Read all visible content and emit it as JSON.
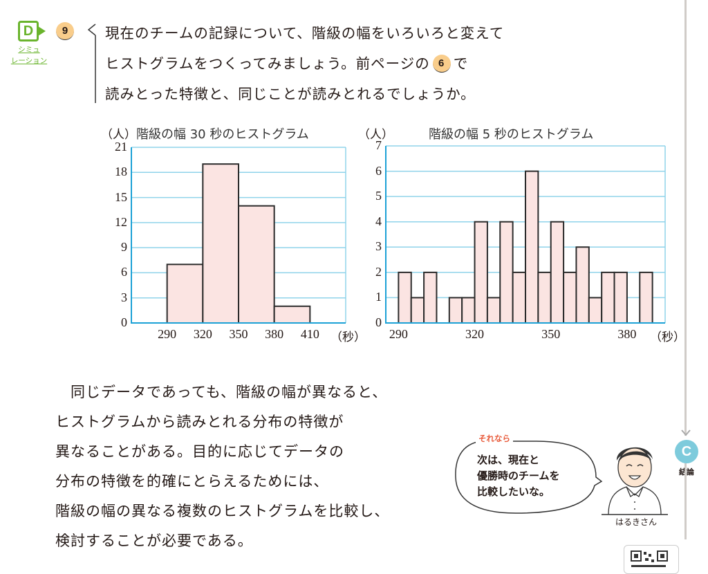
{
  "badge": {
    "letter": "D",
    "label_line1": "シミュ",
    "label_line2": "レーション",
    "color": "#6ab42d"
  },
  "question": {
    "number": "9",
    "lines": [
      "現在のチームの記録について、階級の幅をいろいろと変えて",
      "ヒストグラムをつくってみましょう。前ページの",
      "で",
      "読みとった特徴と、同じことが読みとれるでしょうか。"
    ],
    "ref_number": "6"
  },
  "chart_data": [
    {
      "type": "bar",
      "title": "階級の幅 30 秒のヒストグラム",
      "ylabel": "（人）",
      "xlabel": "（秒）",
      "bin_edges": [
        290,
        320,
        350,
        380,
        410
      ],
      "categories": [
        "290-320",
        "320-350",
        "350-380",
        "380-410"
      ],
      "values": [
        7,
        19,
        14,
        2
      ],
      "x_ticks": [
        "290",
        "320",
        "350",
        "380",
        "410"
      ],
      "y_ticks": [
        "0",
        "3",
        "6",
        "9",
        "12",
        "15",
        "18",
        "21"
      ],
      "ylim": [
        0,
        21
      ],
      "x_range": [
        260,
        440
      ],
      "grid": true,
      "bar_color": "#fbe4e2",
      "grid_color": "#5bc0de"
    },
    {
      "type": "bar",
      "title": "階級の幅 5 秒のヒストグラム",
      "ylabel": "（人）",
      "xlabel": "（秒）",
      "bin_edges": [
        290,
        295,
        300,
        305,
        310,
        315,
        320,
        325,
        330,
        335,
        340,
        345,
        350,
        355,
        360,
        365,
        370,
        375,
        380,
        385,
        390
      ],
      "categories": [
        "290-295",
        "295-300",
        "300-305",
        "305-310",
        "310-315",
        "315-320",
        "320-325",
        "325-330",
        "330-335",
        "335-340",
        "340-345",
        "345-350",
        "350-355",
        "355-360",
        "360-365",
        "365-370",
        "370-375",
        "375-380",
        "380-385",
        "385-390"
      ],
      "values": [
        2,
        1,
        2,
        0,
        1,
        1,
        4,
        1,
        4,
        2,
        6,
        2,
        4,
        2,
        3,
        1,
        2,
        2,
        0,
        2
      ],
      "x_ticks": [
        "290",
        "320",
        "350",
        "380"
      ],
      "y_ticks": [
        "0",
        "1",
        "2",
        "3",
        "4",
        "5",
        "6",
        "7"
      ],
      "ylim": [
        0,
        7
      ],
      "x_range": [
        285,
        395
      ],
      "grid": true,
      "bar_color": "#fbe4e2",
      "grid_color": "#5bc0de"
    }
  ],
  "summary": {
    "lines": [
      "　同じデータであっても、階級の幅が異なると、",
      "ヒストグラムから読みとれる分布の特徴が",
      "異なることがある。目的に応じてデータの",
      "分布の特徴を的確にとらえるためには、",
      "階級の幅の異なる複数のヒストグラムを比較し、",
      "検討することが必要である。"
    ]
  },
  "speech": {
    "label": "それなら",
    "lines": [
      "次は、現在と",
      "優勝時のチームを",
      "比較したいな。"
    ],
    "speaker": "はるきさん"
  },
  "side": {
    "badge": "C",
    "label": "結論"
  }
}
